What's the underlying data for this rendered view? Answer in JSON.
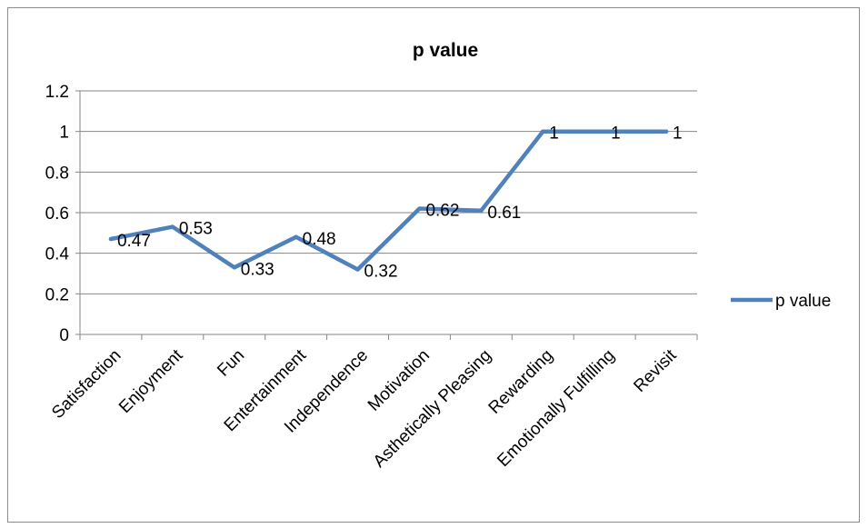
{
  "chart_data": {
    "type": "line",
    "title": "p value",
    "categories": [
      "Satisfaction",
      "Enjoyment",
      "Fun",
      "Entertainment",
      "Independence",
      "Motivation",
      "Asthetically Pleasing",
      "Rewarding",
      "Emotionally Fulfilling",
      "Revisit"
    ],
    "series": [
      {
        "name": "p value",
        "values": [
          0.47,
          0.53,
          0.33,
          0.48,
          0.32,
          0.62,
          0.61,
          1,
          1,
          1
        ],
        "color": "#4f81bd"
      }
    ],
    "data_labels": [
      "0.47",
      "0.53",
      "0.33",
      "0.48",
      "0.32",
      "0.62",
      "0.61",
      "1",
      "1",
      "1"
    ],
    "y_ticks": [
      "0",
      "0.2",
      "0.4",
      "0.6",
      "0.8",
      "1",
      "1.2"
    ],
    "ylim": [
      0,
      1.2
    ],
    "xlabel": "",
    "ylabel": "",
    "grid": true,
    "legend_position": "right"
  }
}
